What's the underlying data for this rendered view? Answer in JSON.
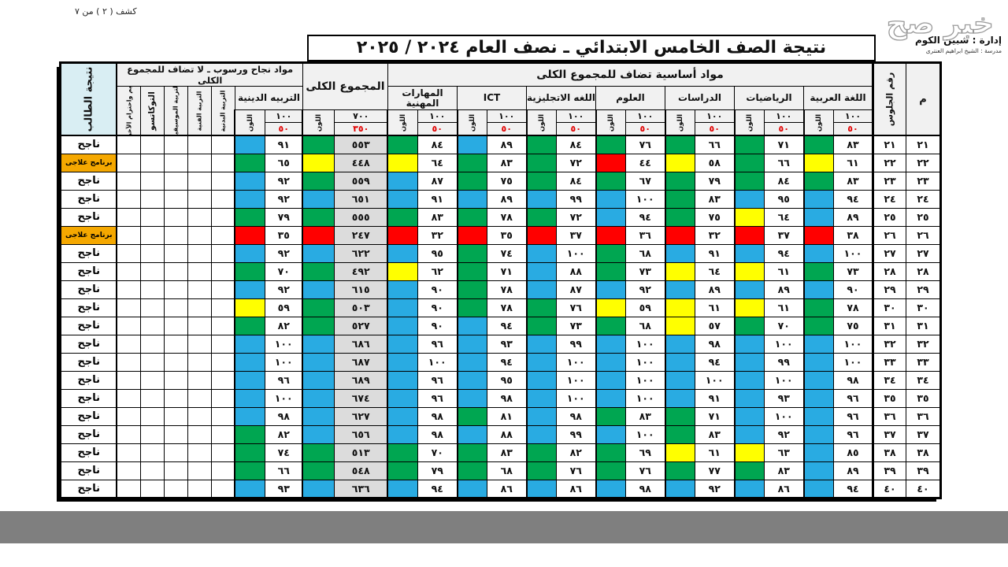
{
  "page": {
    "sheet_label": "كشف ( ٢ ) من ٧",
    "watermark": "خبر صح",
    "admin_line": "إدارة : شبين الكوم",
    "school_line": "مدرسة : الشيخ ابراهيم العنترى",
    "title": "نتيجة الصف الخامس الابتدائي ـ نصف العام ٢٠٢٤ / ٢٠٢٥"
  },
  "table": {
    "headers": {
      "serial": "م",
      "seat": "رقم الجلوس",
      "group_basic": "مواد أساسية تضاف للمجموع الكلى",
      "group_passfail": "مواد نجاح ورسوب ـ لا تضاف للمجموع الكلى",
      "total": "المجموع الكلى",
      "color_label": "اللون",
      "subjects": [
        "اللغة العربية",
        "الرياضيات",
        "الدراسات",
        "العلوم",
        "اللغه الاتجليزية",
        "ICT",
        "المهارات المهنية"
      ],
      "religion": "التربيه الدينية",
      "passfail_subjects": [
        "التربية البدنية",
        "التربية الفنية",
        "التربية الموسيقية",
        "التوكاتسو",
        "القيم واحترام الآخرين"
      ],
      "result": "نتيجة الطالب",
      "subject_max": "١٠٠",
      "subject_min": "٥٠",
      "total_max": "٧٠٠",
      "total_min": "٣٥٠"
    },
    "labels": {
      "result_pass": "ناجح",
      "result_remedial": "برنامج علاجى"
    },
    "legend_colors": {
      "blue": "#29abe2",
      "green": "#00a651",
      "yellow": "#ffff00",
      "red": "#ff0000",
      "remedial": "#f5a800"
    },
    "numerals": "arabic-indic",
    "rows": [
      {
        "n": 21,
        "seat": 21,
        "s": [
          [
            83,
            "g"
          ],
          [
            71,
            "g"
          ],
          [
            66,
            "g"
          ],
          [
            76,
            "g"
          ],
          [
            84,
            "g"
          ],
          [
            89,
            "b"
          ],
          [
            84,
            "g"
          ]
        ],
        "t": [
          553,
          "g"
        ],
        "rel": [
          91,
          "b"
        ],
        "res": "pass"
      },
      {
        "n": 22,
        "seat": 22,
        "s": [
          [
            61,
            "y"
          ],
          [
            66,
            "g"
          ],
          [
            58,
            "y"
          ],
          [
            44,
            "r"
          ],
          [
            72,
            "g"
          ],
          [
            83,
            "g"
          ],
          [
            64,
            "y"
          ]
        ],
        "t": [
          448,
          "y"
        ],
        "rel": [
          65,
          "g"
        ],
        "res": "remedial"
      },
      {
        "n": 23,
        "seat": 23,
        "s": [
          [
            83,
            "g"
          ],
          [
            84,
            "g"
          ],
          [
            79,
            "g"
          ],
          [
            67,
            "g"
          ],
          [
            84,
            "g"
          ],
          [
            75,
            "g"
          ],
          [
            87,
            "b"
          ]
        ],
        "t": [
          559,
          "g"
        ],
        "rel": [
          92,
          "b"
        ],
        "res": "pass"
      },
      {
        "n": 24,
        "seat": 24,
        "s": [
          [
            94,
            "b"
          ],
          [
            95,
            "b"
          ],
          [
            83,
            "g"
          ],
          [
            100,
            "b"
          ],
          [
            99,
            "b"
          ],
          [
            89,
            "b"
          ],
          [
            91,
            "b"
          ]
        ],
        "t": [
          651,
          "b"
        ],
        "rel": [
          92,
          "b"
        ],
        "res": "pass"
      },
      {
        "n": 25,
        "seat": 25,
        "s": [
          [
            89,
            "b"
          ],
          [
            64,
            "y"
          ],
          [
            75,
            "g"
          ],
          [
            94,
            "b"
          ],
          [
            72,
            "g"
          ],
          [
            78,
            "g"
          ],
          [
            83,
            "g"
          ]
        ],
        "t": [
          555,
          "g"
        ],
        "rel": [
          79,
          "g"
        ],
        "res": "pass"
      },
      {
        "n": 26,
        "seat": 26,
        "s": [
          [
            38,
            "r"
          ],
          [
            37,
            "r"
          ],
          [
            32,
            "r"
          ],
          [
            36,
            "r"
          ],
          [
            37,
            "r"
          ],
          [
            35,
            "r"
          ],
          [
            32,
            "r"
          ]
        ],
        "t": [
          247,
          "r"
        ],
        "rel": [
          35,
          "r"
        ],
        "res": "remedial"
      },
      {
        "n": 27,
        "seat": 27,
        "s": [
          [
            100,
            "b"
          ],
          [
            94,
            "b"
          ],
          [
            91,
            "b"
          ],
          [
            68,
            "g"
          ],
          [
            100,
            "b"
          ],
          [
            74,
            "g"
          ],
          [
            95,
            "b"
          ]
        ],
        "t": [
          622,
          "b"
        ],
        "rel": [
          92,
          "b"
        ],
        "res": "pass"
      },
      {
        "n": 28,
        "seat": 28,
        "s": [
          [
            73,
            "g"
          ],
          [
            61,
            "y"
          ],
          [
            64,
            "y"
          ],
          [
            73,
            "g"
          ],
          [
            88,
            "b"
          ],
          [
            71,
            "g"
          ],
          [
            62,
            "y"
          ]
        ],
        "t": [
          492,
          "g"
        ],
        "rel": [
          70,
          "g"
        ],
        "res": "pass"
      },
      {
        "n": 29,
        "seat": 29,
        "s": [
          [
            90,
            "b"
          ],
          [
            89,
            "b"
          ],
          [
            89,
            "b"
          ],
          [
            92,
            "b"
          ],
          [
            87,
            "b"
          ],
          [
            78,
            "g"
          ],
          [
            90,
            "b"
          ]
        ],
        "t": [
          615,
          "b"
        ],
        "rel": [
          92,
          "b"
        ],
        "res": "pass"
      },
      {
        "n": 30,
        "seat": 30,
        "s": [
          [
            78,
            "g"
          ],
          [
            61,
            "y"
          ],
          [
            61,
            "y"
          ],
          [
            59,
            "y"
          ],
          [
            76,
            "g"
          ],
          [
            78,
            "g"
          ],
          [
            90,
            "b"
          ]
        ],
        "t": [
          503,
          "g"
        ],
        "rel": [
          59,
          "y"
        ],
        "res": "pass"
      },
      {
        "n": 31,
        "seat": 31,
        "s": [
          [
            75,
            "g"
          ],
          [
            70,
            "g"
          ],
          [
            57,
            "y"
          ],
          [
            68,
            "g"
          ],
          [
            73,
            "g"
          ],
          [
            94,
            "b"
          ],
          [
            90,
            "b"
          ]
        ],
        "t": [
          527,
          "g"
        ],
        "rel": [
          82,
          "g"
        ],
        "res": "pass"
      },
      {
        "n": 32,
        "seat": 32,
        "s": [
          [
            100,
            "b"
          ],
          [
            100,
            "b"
          ],
          [
            98,
            "b"
          ],
          [
            100,
            "b"
          ],
          [
            99,
            "b"
          ],
          [
            93,
            "b"
          ],
          [
            96,
            "b"
          ]
        ],
        "t": [
          686,
          "b"
        ],
        "rel": [
          100,
          "b"
        ],
        "res": "pass"
      },
      {
        "n": 33,
        "seat": 33,
        "s": [
          [
            100,
            "b"
          ],
          [
            99,
            "b"
          ],
          [
            94,
            "b"
          ],
          [
            100,
            "b"
          ],
          [
            100,
            "b"
          ],
          [
            94,
            "b"
          ],
          [
            100,
            "b"
          ]
        ],
        "t": [
          687,
          "b"
        ],
        "rel": [
          100,
          "b"
        ],
        "res": "pass"
      },
      {
        "n": 34,
        "seat": 34,
        "s": [
          [
            98,
            "b"
          ],
          [
            100,
            "b"
          ],
          [
            100,
            "b"
          ],
          [
            100,
            "b"
          ],
          [
            100,
            "b"
          ],
          [
            95,
            "b"
          ],
          [
            96,
            "b"
          ]
        ],
        "t": [
          689,
          "b"
        ],
        "rel": [
          96,
          "b"
        ],
        "res": "pass"
      },
      {
        "n": 35,
        "seat": 35,
        "s": [
          [
            96,
            "b"
          ],
          [
            93,
            "b"
          ],
          [
            91,
            "b"
          ],
          [
            100,
            "b"
          ],
          [
            100,
            "b"
          ],
          [
            98,
            "b"
          ],
          [
            96,
            "b"
          ]
        ],
        "t": [
          674,
          "b"
        ],
        "rel": [
          100,
          "b"
        ],
        "res": "pass"
      },
      {
        "n": 36,
        "seat": 36,
        "s": [
          [
            96,
            "b"
          ],
          [
            100,
            "b"
          ],
          [
            71,
            "g"
          ],
          [
            83,
            "g"
          ],
          [
            98,
            "b"
          ],
          [
            81,
            "g"
          ],
          [
            98,
            "b"
          ]
        ],
        "t": [
          627,
          "b"
        ],
        "rel": [
          98,
          "b"
        ],
        "res": "pass"
      },
      {
        "n": 37,
        "seat": 37,
        "s": [
          [
            96,
            "b"
          ],
          [
            92,
            "b"
          ],
          [
            83,
            "g"
          ],
          [
            100,
            "b"
          ],
          [
            99,
            "b"
          ],
          [
            88,
            "b"
          ],
          [
            98,
            "b"
          ]
        ],
        "t": [
          656,
          "b"
        ],
        "rel": [
          82,
          "g"
        ],
        "res": "pass"
      },
      {
        "n": 38,
        "seat": 38,
        "s": [
          [
            85,
            "b"
          ],
          [
            63,
            "y"
          ],
          [
            61,
            "y"
          ],
          [
            69,
            "g"
          ],
          [
            82,
            "g"
          ],
          [
            83,
            "g"
          ],
          [
            70,
            "g"
          ]
        ],
        "t": [
          513,
          "g"
        ],
        "rel": [
          74,
          "g"
        ],
        "res": "pass"
      },
      {
        "n": 39,
        "seat": 39,
        "s": [
          [
            89,
            "b"
          ],
          [
            83,
            "g"
          ],
          [
            77,
            "g"
          ],
          [
            76,
            "g"
          ],
          [
            76,
            "g"
          ],
          [
            68,
            "g"
          ],
          [
            79,
            "g"
          ]
        ],
        "t": [
          548,
          "g"
        ],
        "rel": [
          66,
          "g"
        ],
        "res": "pass"
      },
      {
        "n": 40,
        "seat": 40,
        "s": [
          [
            94,
            "b"
          ],
          [
            86,
            "b"
          ],
          [
            92,
            "b"
          ],
          [
            98,
            "b"
          ],
          [
            86,
            "b"
          ],
          [
            86,
            "b"
          ],
          [
            94,
            "b"
          ]
        ],
        "t": [
          636,
          "b"
        ],
        "rel": [
          93,
          "b"
        ],
        "res": "pass"
      }
    ]
  }
}
